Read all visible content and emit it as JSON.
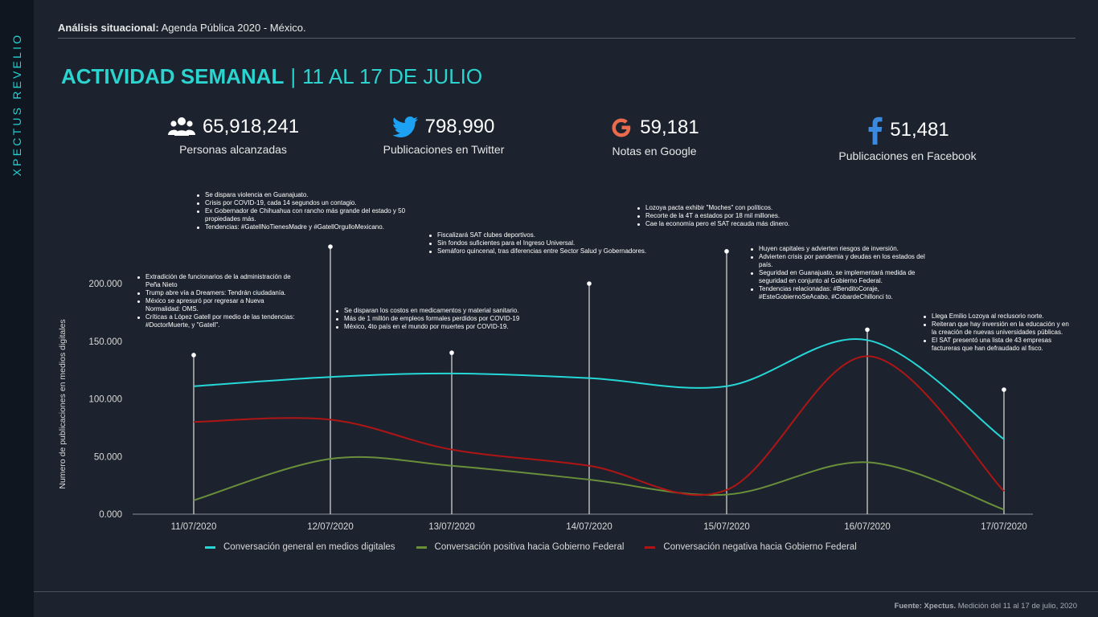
{
  "brand": "XPECTUS REVELIO",
  "header": {
    "label": "Análisis situacional:",
    "text": "Agenda Pública 2020 - México."
  },
  "title": {
    "strong": "ACTIVIDAD SEMANAL",
    "separator": "|",
    "dates": "11 AL 17 DE JULIO"
  },
  "stats": [
    {
      "icon": "people-icon",
      "value": "65,918,241",
      "label": "Personas alcanzadas"
    },
    {
      "icon": "twitter-icon",
      "value": "798,990",
      "label": "Publicaciones en Twitter"
    },
    {
      "icon": "google-icon",
      "value": "59,181",
      "label": "Notas en Google"
    },
    {
      "icon": "facebook-icon",
      "value": "51,481",
      "label": "Publicaciones en Facebook"
    }
  ],
  "chart_data": {
    "type": "line",
    "ylabel": "Numero de publicaciones en medios digitales",
    "ylim": [
      0,
      200000
    ],
    "y_ticks": [
      "0.000",
      "50.000",
      "100.000",
      "150.000",
      "200.000"
    ],
    "y_tick_values": [
      0,
      50000,
      100000,
      150000,
      200000
    ],
    "categories": [
      "11/07/2020",
      "12/07/2020",
      "13/07/2020",
      "14/07/2020",
      "15/07/2020",
      "16/07/2020",
      "17/07/2020"
    ],
    "series": [
      {
        "name": "Conversación general en medios digitales",
        "color": "#26d7d7",
        "values": [
          111000,
          119000,
          122000,
          118000,
          111000,
          151000,
          65000
        ]
      },
      {
        "name": "Conversación positiva hacia Gobierno Federal",
        "color": "#6a8f3a",
        "values": [
          12000,
          48000,
          42000,
          30000,
          17000,
          45000,
          4000
        ]
      },
      {
        "name": "Conversación negativa hacia Gobierno Federal",
        "color": "#b01515",
        "values": [
          80000,
          82000,
          56000,
          42000,
          21000,
          137000,
          20000
        ]
      }
    ],
    "legend_position": "bottom",
    "annotation_markers": [
      138000,
      232000,
      140000,
      200000,
      228000,
      160000,
      108000
    ],
    "annotations": [
      [
        "Extradición de funcionarios de la administración de Peña Nieto",
        "Trump abre vía a Dreamers: Tendrán ciudadanía.",
        "México se apresuró por regresar a Nueva Normalidad: OMS.",
        "Críticas a López Gatell por medio de las tendencias: #DoctorMuerte, y \"Gatell\"."
      ],
      [
        "Se dispara violencia en Guanajuato.",
        "Crisis por COVID-19, cada 14 segundos un contagio.",
        "Ex Gobernador de Chihuahua con rancho más grande del estado y 50 propiedades más.",
        "Tendencias: #GatellNoTienesMadre y #GatellOrgulloMexicano."
      ],
      [
        "Se disparan los costos en medicamentos y material  sanitario.",
        "Más de 1 millón de empleos formales perdidos por COVID-19",
        "México, 4to país en el mundo por muertes por COVID-19."
      ],
      [
        "Fiscalizará SAT clubes deportivos.",
        "Sin fondos suficientes para el Ingreso Universal.",
        "Semáforo quincenal, tras diferencias entre Sector Salud y Gobernadores."
      ],
      [
        "Lozoya pacta exhibir \"Moches\" con políticos.",
        "Recorte de la 4T a estados por 18 mil millones.",
        "Cae la economía pero el SAT recauda más dinero."
      ],
      [
        "Huyen capitales y advierten riesgos de inversión.",
        "Advierten crisis por pandemia y deudas en los estados del país.",
        "Seguridad en Guanajuato, se implementará medida de seguridad en conjunto al Gobierno Federal.",
        "Tendencias relacionadas: #BenditoCoraje, #EsteGobiernoSeAcabo, #CobardeChillonci to."
      ],
      [
        "Llega Emilio Lozoya al reclusorio norte.",
        "Reiteran que hay inversión en la educación y en la creación de nuevas universidades públicas.",
        "El SAT presentó una lista de 43 empresas factureras que han defraudado al fisco."
      ]
    ]
  },
  "footer": {
    "source_label": "Fuente: Xpectus.",
    "source_text": "Medición del 11 al 17 de julio, 2020"
  }
}
